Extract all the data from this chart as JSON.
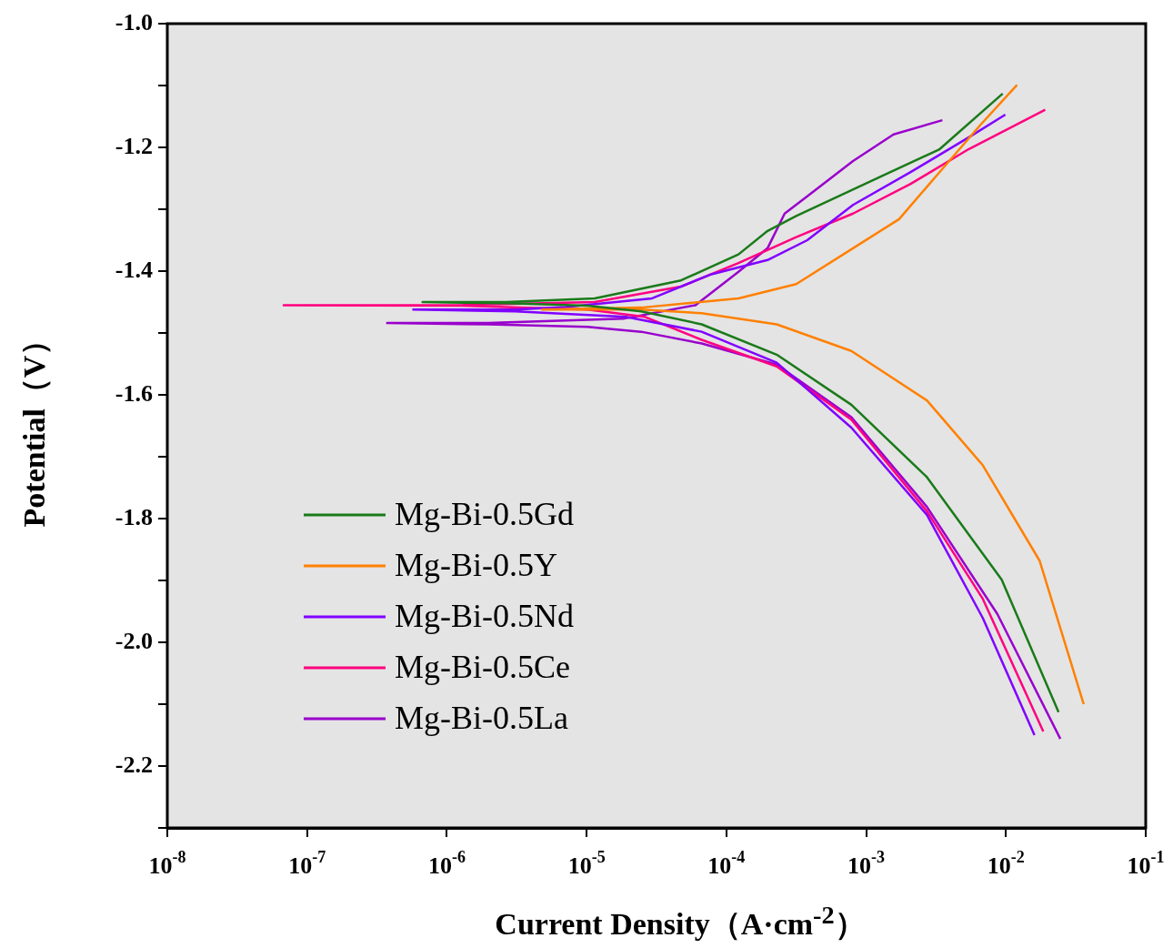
{
  "chart_data": {
    "type": "line",
    "xlabel": "Current Density（A·cm$^{-2}$）",
    "ylabel": "Potential（V）",
    "log": "x",
    "marker": "none",
    "legend": "bottom left",
    "xlim": [
      1e-08,
      0.1
    ],
    "xticks": [
      {
        "value": 1e-08,
        "label": "10$^{-8}$"
      },
      {
        "value": 1e-07,
        "label": "10$^{-7}$"
      },
      {
        "value": 1e-06,
        "label": "10$^{-6}$"
      },
      {
        "value": 1e-05,
        "label": "10$^{-5}$"
      },
      {
        "value": 0.0001,
        "label": "10$^{-4}$"
      },
      {
        "value": 0.001,
        "label": "10$^{-3}$"
      },
      {
        "value": 0.01,
        "label": "10$^{-2}$"
      },
      {
        "value": 0.1,
        "label": "10$^{-1}$"
      }
    ],
    "ylim": [
      -2.3,
      -1.0
    ],
    "yticks": [
      {
        "value": -2.3,
        "label": null
      },
      {
        "value": -2.2,
        "label": "-2.2"
      },
      {
        "value": -2.1,
        "label": null
      },
      {
        "value": -2.0,
        "label": "-2.0"
      },
      {
        "value": -1.9,
        "label": null
      },
      {
        "value": -1.8,
        "label": "-1.8"
      },
      {
        "value": -1.7,
        "label": null
      },
      {
        "value": -1.6,
        "label": "-1.6"
      },
      {
        "value": -1.5,
        "label": null
      },
      {
        "value": -1.4,
        "label": "-1.4"
      },
      {
        "value": -1.3,
        "label": null
      },
      {
        "value": -1.2,
        "label": "-1.2"
      },
      {
        "value": -1.1,
        "label": null
      },
      {
        "value": -1.0,
        "label": "-1.0"
      }
    ],
    "series": [
      {
        "name": "Mg-Bi-0.5Gd",
        "color": "#1a7a1a",
        "x": [
          0.0238,
          0.00933,
          0.00272,
          0.000783,
          0.000229,
          6.65e-05,
          2.46e-05,
          1.01e-05,
          2.65e-06,
          6.7e-07,
          2.65e-06,
          1.14e-05,
          4.73e-05,
          0.000122,
          0.000197,
          0.000316,
          0.0013,
          0.00335,
          0.00948
        ],
        "values": [
          -2.113,
          -1.899,
          -1.733,
          -1.616,
          -1.535,
          -1.486,
          -1.465,
          -1.456,
          -1.452,
          -1.45,
          -1.45,
          -1.444,
          -1.415,
          -1.373,
          -1.335,
          -1.311,
          -1.246,
          -1.203,
          -1.113
        ]
      },
      {
        "name": "Mg-Bi-0.5Y",
        "color": "#ff8000",
        "x": [
          0.036,
          0.0174,
          0.00684,
          0.00272,
          0.000783,
          0.000229,
          6.65e-05,
          2.46e-05,
          4.8e-06,
          2.46e-05,
          0.000122,
          0.000316,
          0.000805,
          0.00172,
          0.00335,
          0.00655,
          0.012
        ],
        "values": [
          -2.1,
          -1.868,
          -1.714,
          -1.609,
          -1.529,
          -1.486,
          -1.468,
          -1.462,
          -1.462,
          -1.459,
          -1.444,
          -1.421,
          -1.363,
          -1.316,
          -1.24,
          -1.164,
          -1.099
        ]
      },
      {
        "name": "Mg-Bi-0.5Nd",
        "color": "#8000ff",
        "x": [
          0.016,
          0.00684,
          0.00272,
          0.000783,
          0.000229,
          6.65e-05,
          1.91e-05,
          3.08e-06,
          5.75e-07,
          3.08e-06,
          7.08e-06,
          2.94e-05,
          7.6e-05,
          0.000197,
          0.000379,
          0.000805,
          0.00208,
          0.0054,
          0.0099
        ],
        "values": [
          -2.15,
          -1.961,
          -1.794,
          -1.653,
          -1.548,
          -1.498,
          -1.474,
          -1.465,
          -1.462,
          -1.462,
          -1.458,
          -1.444,
          -1.406,
          -1.382,
          -1.35,
          -1.293,
          -1.24,
          -1.184,
          -1.147
        ]
      },
      {
        "name": "Mg-Bi-0.5Ce",
        "color": "#ff0080",
        "x": [
          0.0185,
          0.00684,
          0.00272,
          0.000783,
          0.000229,
          6.65e-05,
          2.61e-05,
          1.01e-05,
          1.26e-06,
          6.8e-08,
          1.26e-06,
          1.14e-05,
          4.73e-05,
          0.000122,
          0.000316,
          0.000805,
          0.00208,
          0.0054,
          0.0191
        ],
        "values": [
          -2.144,
          -1.93,
          -1.788,
          -1.64,
          -1.554,
          -1.511,
          -1.474,
          -1.462,
          -1.456,
          -1.455,
          -1.455,
          -1.45,
          -1.425,
          -1.387,
          -1.345,
          -1.307,
          -1.259,
          -1.203,
          -1.139
        ]
      },
      {
        "name": "Mg-Bi-0.5La",
        "color": "#9900cc",
        "x": [
          0.0245,
          0.00867,
          0.00272,
          0.000783,
          0.000229,
          6.65e-05,
          2.46e-05,
          1.01e-05,
          1.97e-06,
          3.74e-07,
          1.97e-06,
          1.83e-05,
          6e-05,
          0.000122,
          0.000197,
          0.000261,
          0.000379,
          0.000805,
          0.00157,
          0.00351
        ],
        "values": [
          -2.156,
          -1.954,
          -1.781,
          -1.636,
          -1.551,
          -1.517,
          -1.498,
          -1.49,
          -1.486,
          -1.484,
          -1.484,
          -1.477,
          -1.455,
          -1.401,
          -1.363,
          -1.307,
          -1.279,
          -1.222,
          -1.179,
          -1.156
        ]
      }
    ]
  }
}
